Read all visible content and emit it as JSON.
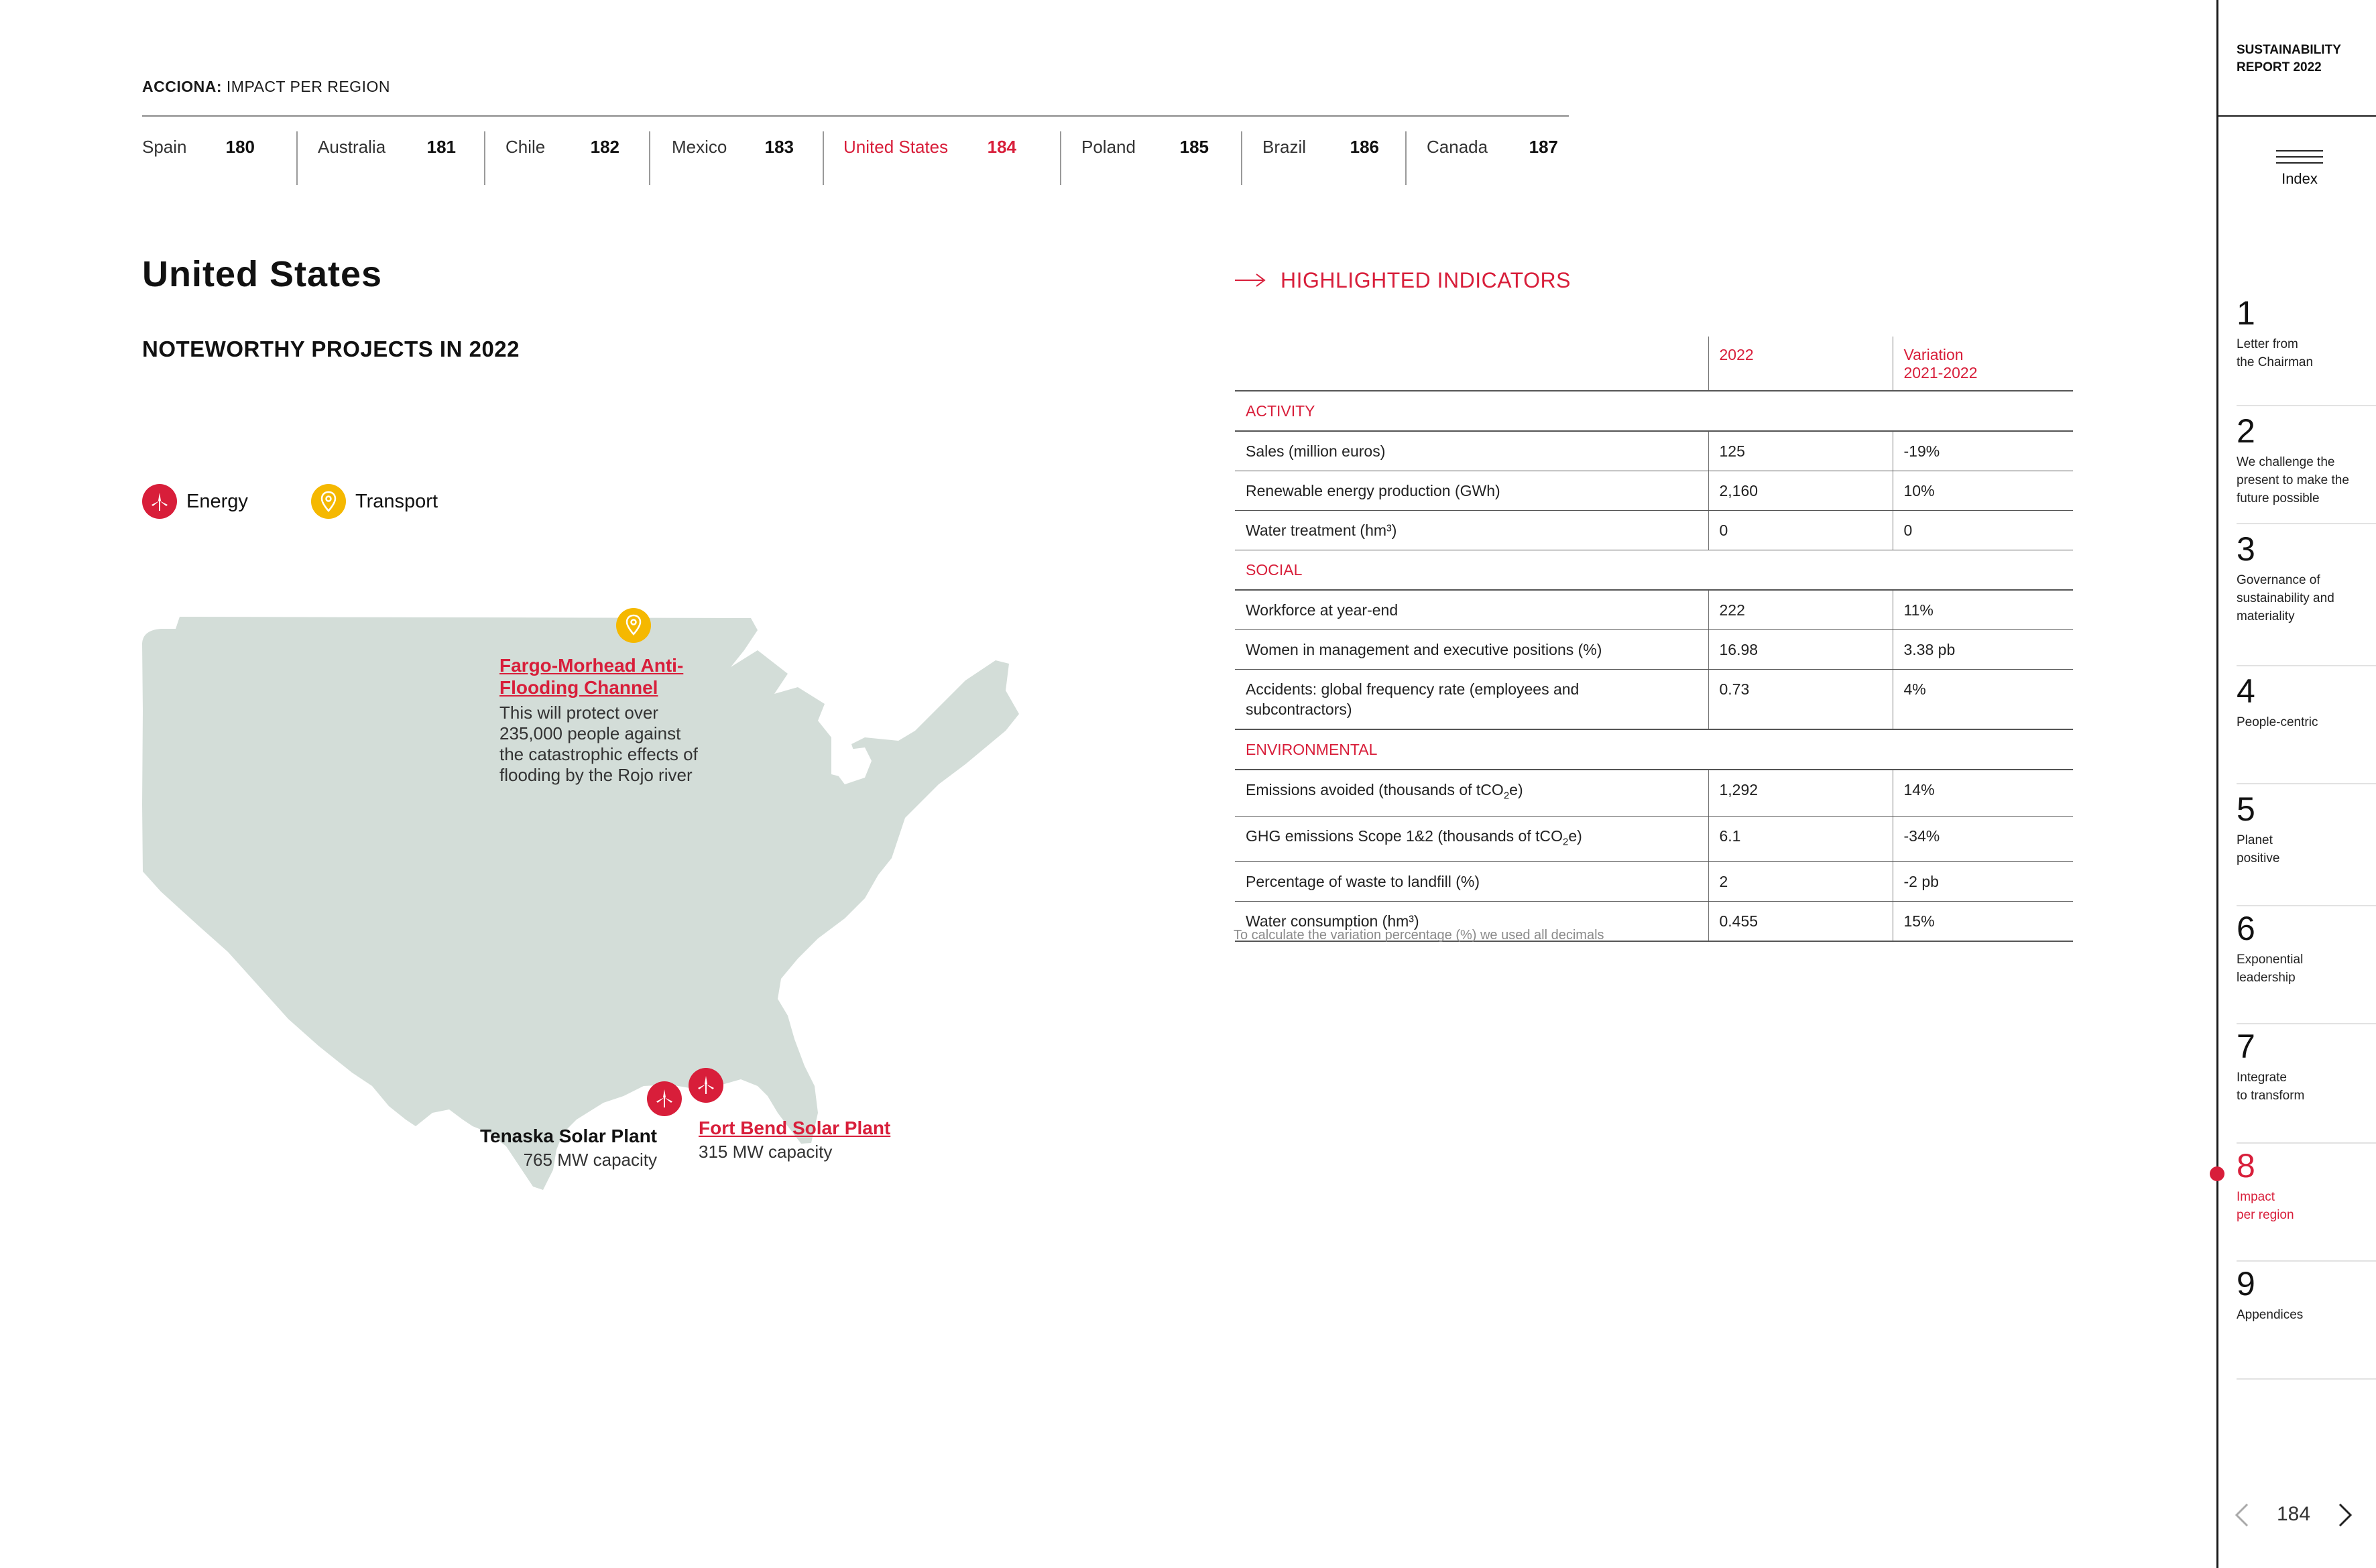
{
  "header": {
    "brand": "ACCIONA:",
    "section": "IMPACT PER REGION"
  },
  "tabs": [
    {
      "name": "Spain",
      "page": "180"
    },
    {
      "name": "Australia",
      "page": "181"
    },
    {
      "name": "Chile",
      "page": "182"
    },
    {
      "name": "Mexico",
      "page": "183"
    },
    {
      "name": "United States",
      "page": "184"
    },
    {
      "name": "Poland",
      "page": "185"
    },
    {
      "name": "Brazil",
      "page": "186"
    },
    {
      "name": "Canada",
      "page": "187"
    }
  ],
  "page_title": "United States",
  "subtitle": "NOTEWORTHY PROJECTS IN 2022",
  "legend": {
    "energy": "Energy",
    "transport": "Transport"
  },
  "projects": {
    "fargo": {
      "title_line1": "Fargo-Morhead Anti-",
      "title_line2": "Flooding Channel",
      "desc": [
        "This will protect over",
        "235,000 people against",
        "the catastrophic effects of",
        "flooding by the Rojo river"
      ]
    },
    "tenaska": {
      "title": "Tenaska Solar Plant",
      "desc": "765 MW capacity"
    },
    "fortbend": {
      "title": "Fort Bend Solar Plant",
      "desc": "315 MW capacity"
    }
  },
  "indicators": {
    "title": "HIGHLIGHTED INDICATORS",
    "col_2022": "2022",
    "col_variation_line1": "Variation",
    "col_variation_line2": "2021-2022",
    "sections": {
      "activity": "ACTIVITY",
      "social": "SOCIAL",
      "environmental": "ENVIRONMENTAL"
    },
    "rows": {
      "sales": {
        "label": "Sales (million euros)",
        "v2022": "125",
        "var": "-19%"
      },
      "renewable": {
        "label": "Renewable energy production (GWh)",
        "v2022": "2,160",
        "var": "10%"
      },
      "water_treatment": {
        "label": "Water treatment (hm³)",
        "v2022": "0",
        "var": "0"
      },
      "workforce": {
        "label": "Workforce at year-end",
        "v2022": "222",
        "var": "11%"
      },
      "women": {
        "label": "Women in management and executive positions (%)",
        "v2022": "16.98",
        "var": "3.38 pb"
      },
      "accidents": {
        "label_line1": "Accidents: global frequency rate (employees and",
        "label_line2": "subcontractors)",
        "v2022": "0.73",
        "var": "4%"
      },
      "emissions_avoided": {
        "label_pre": "Emissions avoided (thousands of tCO",
        "label_sub": "2",
        "label_post": "e)",
        "v2022": "1,292",
        "var": "14%"
      },
      "ghg": {
        "label_pre": "GHG emissions Scope 1&2 (thousands of tCO",
        "label_sub": "2",
        "label_post": "e)",
        "v2022": "6.1",
        "var": "-34%"
      },
      "waste": {
        "label": "Percentage of waste to landfill (%)",
        "v2022": "2",
        "var": "-2 pb"
      },
      "water_consumption": {
        "label": "Water consumption (hm³)",
        "v2022": "0.455",
        "var": "15%"
      }
    },
    "footnote": "To calculate the variation percentage (%) we used all decimals"
  },
  "sidebar": {
    "report_title_line1": "SUSTAINABILITY",
    "report_title_line2": "REPORT 2022",
    "index_label": "Index",
    "chapters": [
      {
        "num": "1",
        "line1": "Letter from",
        "line2": "the Chairman"
      },
      {
        "num": "2",
        "line1": "We challenge the",
        "line2": "present to make the",
        "line3": "future possible"
      },
      {
        "num": "3",
        "line1": "Governance of",
        "line2": "sustainability and",
        "line3": "materiality"
      },
      {
        "num": "4",
        "line1": "People-centric"
      },
      {
        "num": "5",
        "line1": "Planet",
        "line2": "positive"
      },
      {
        "num": "6",
        "line1": "Exponential",
        "line2": "leadership"
      },
      {
        "num": "7",
        "line1": "Integrate",
        "line2": "to transform"
      },
      {
        "num": "8",
        "line1": "Impact",
        "line2": "per region"
      },
      {
        "num": "9",
        "line1": "Appendices"
      }
    ]
  },
  "pagination": {
    "page": "184",
    "prev_icon": "chevron-left-icon",
    "next_icon": "chevron-right-icon"
  },
  "colors": {
    "accent": "#d81e3a",
    "transport": "#f5b800",
    "map": "#d3ddd8"
  }
}
